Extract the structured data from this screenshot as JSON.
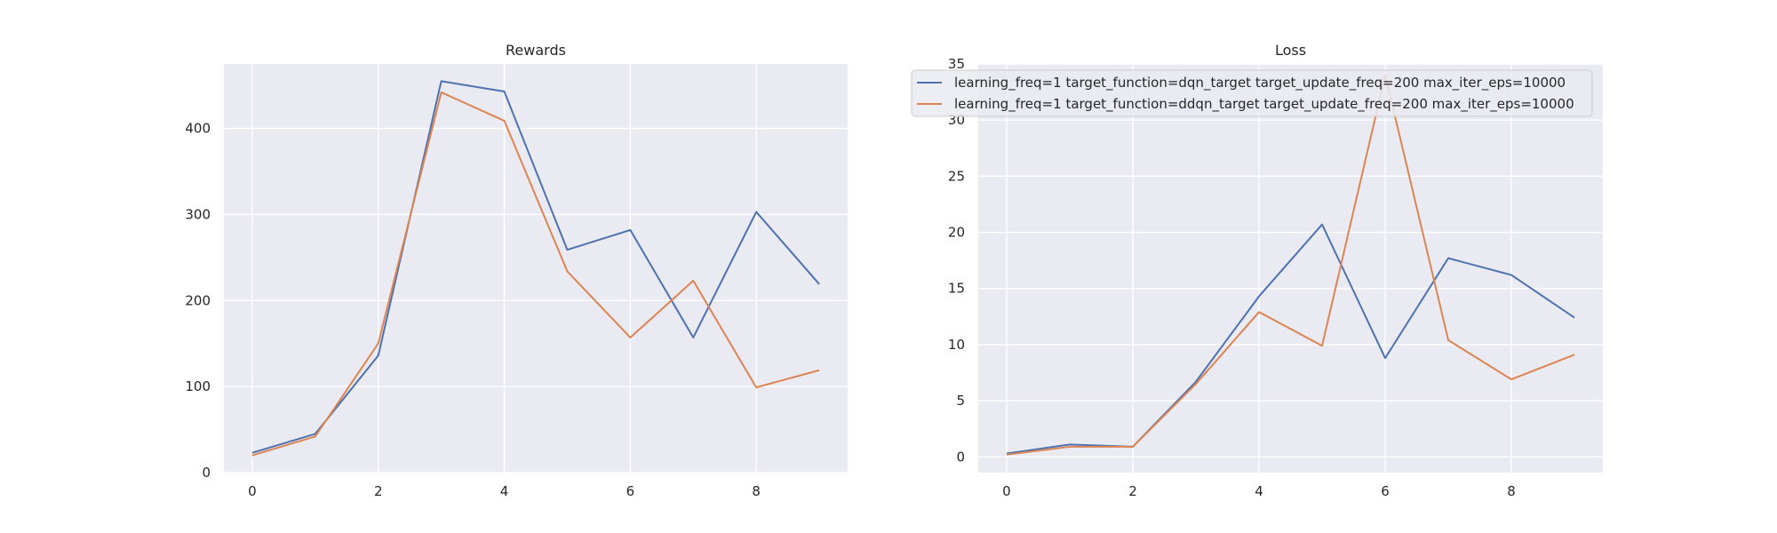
{
  "chart_data": [
    {
      "type": "line",
      "title": "Rewards",
      "xlabel": "",
      "ylabel": "",
      "x": [
        0,
        1,
        2,
        3,
        4,
        5,
        6,
        7,
        8,
        9
      ],
      "xlim": [
        -0.45,
        9.45
      ],
      "ylim": [
        0,
        475
      ],
      "xticks": [
        0,
        2,
        4,
        6,
        8
      ],
      "yticks": [
        0,
        100,
        200,
        300,
        400
      ],
      "grid": true,
      "series": [
        {
          "name": "learning_freq=1 target_function=dqn_target target_update_freq=200 max_iter_eps=10000",
          "color": "#4c72b0",
          "values": [
            23,
            45,
            136,
            455,
            443,
            259,
            282,
            157,
            303,
            219
          ]
        },
        {
          "name": "learning_freq=1 target_function=ddqn_target target_update_freq=200 max_iter_eps=10000",
          "color": "#dd8452",
          "values": [
            20,
            42,
            150,
            442,
            409,
            234,
            157,
            223,
            99,
            119
          ]
        }
      ]
    },
    {
      "type": "line",
      "title": "Loss",
      "xlabel": "",
      "ylabel": "",
      "x": [
        0,
        1,
        2,
        3,
        4,
        5,
        6,
        7,
        8,
        9
      ],
      "xlim": [
        -0.45,
        9.45
      ],
      "ylim": [
        -1.4,
        35
      ],
      "xticks": [
        0,
        2,
        4,
        6,
        8
      ],
      "yticks": [
        0,
        5,
        10,
        15,
        20,
        25,
        30,
        35
      ],
      "grid": true,
      "legend_location": "top",
      "series": [
        {
          "name": "learning_freq=1 target_function=dqn_target target_update_freq=200 max_iter_eps=10000",
          "color": "#4c72b0",
          "values": [
            0.3,
            1.1,
            0.9,
            6.7,
            14.3,
            20.7,
            8.8,
            17.7,
            16.2,
            12.4
          ]
        },
        {
          "name": "learning_freq=1 target_function=ddqn_target target_update_freq=200 max_iter_eps=10000",
          "color": "#dd8452",
          "values": [
            0.2,
            0.9,
            0.9,
            6.5,
            12.9,
            9.9,
            34.0,
            10.4,
            6.9,
            9.1
          ]
        }
      ]
    }
  ],
  "style": {
    "axes_bg": "#eaeaf2",
    "grid_color": "#ffffff",
    "text_color": "#262626"
  }
}
